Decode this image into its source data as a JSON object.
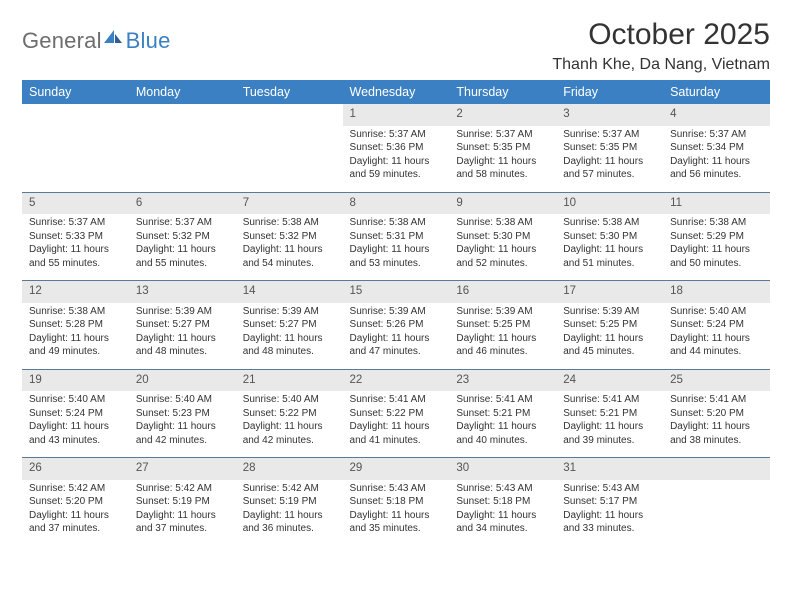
{
  "brand": {
    "part1": "General",
    "part2": "Blue"
  },
  "title": "October 2025",
  "location": "Thanh Khe, Da Nang, Vietnam",
  "colors": {
    "accent": "#3b80c2",
    "dayRowBg": "#e9e9e9",
    "ruleColor": "#5a7a9a",
    "logoGray": "#6d6d6d",
    "text": "#333333"
  },
  "dayHeaders": [
    "Sunday",
    "Monday",
    "Tuesday",
    "Wednesday",
    "Thursday",
    "Friday",
    "Saturday"
  ],
  "weeks": [
    [
      null,
      null,
      null,
      {
        "n": "1",
        "sr": "Sunrise: 5:37 AM",
        "ss": "Sunset: 5:36 PM",
        "dl": "Daylight: 11 hours and 59 minutes."
      },
      {
        "n": "2",
        "sr": "Sunrise: 5:37 AM",
        "ss": "Sunset: 5:35 PM",
        "dl": "Daylight: 11 hours and 58 minutes."
      },
      {
        "n": "3",
        "sr": "Sunrise: 5:37 AM",
        "ss": "Sunset: 5:35 PM",
        "dl": "Daylight: 11 hours and 57 minutes."
      },
      {
        "n": "4",
        "sr": "Sunrise: 5:37 AM",
        "ss": "Sunset: 5:34 PM",
        "dl": "Daylight: 11 hours and 56 minutes."
      }
    ],
    [
      {
        "n": "5",
        "sr": "Sunrise: 5:37 AM",
        "ss": "Sunset: 5:33 PM",
        "dl": "Daylight: 11 hours and 55 minutes."
      },
      {
        "n": "6",
        "sr": "Sunrise: 5:37 AM",
        "ss": "Sunset: 5:32 PM",
        "dl": "Daylight: 11 hours and 55 minutes."
      },
      {
        "n": "7",
        "sr": "Sunrise: 5:38 AM",
        "ss": "Sunset: 5:32 PM",
        "dl": "Daylight: 11 hours and 54 minutes."
      },
      {
        "n": "8",
        "sr": "Sunrise: 5:38 AM",
        "ss": "Sunset: 5:31 PM",
        "dl": "Daylight: 11 hours and 53 minutes."
      },
      {
        "n": "9",
        "sr": "Sunrise: 5:38 AM",
        "ss": "Sunset: 5:30 PM",
        "dl": "Daylight: 11 hours and 52 minutes."
      },
      {
        "n": "10",
        "sr": "Sunrise: 5:38 AM",
        "ss": "Sunset: 5:30 PM",
        "dl": "Daylight: 11 hours and 51 minutes."
      },
      {
        "n": "11",
        "sr": "Sunrise: 5:38 AM",
        "ss": "Sunset: 5:29 PM",
        "dl": "Daylight: 11 hours and 50 minutes."
      }
    ],
    [
      {
        "n": "12",
        "sr": "Sunrise: 5:38 AM",
        "ss": "Sunset: 5:28 PM",
        "dl": "Daylight: 11 hours and 49 minutes."
      },
      {
        "n": "13",
        "sr": "Sunrise: 5:39 AM",
        "ss": "Sunset: 5:27 PM",
        "dl": "Daylight: 11 hours and 48 minutes."
      },
      {
        "n": "14",
        "sr": "Sunrise: 5:39 AM",
        "ss": "Sunset: 5:27 PM",
        "dl": "Daylight: 11 hours and 48 minutes."
      },
      {
        "n": "15",
        "sr": "Sunrise: 5:39 AM",
        "ss": "Sunset: 5:26 PM",
        "dl": "Daylight: 11 hours and 47 minutes."
      },
      {
        "n": "16",
        "sr": "Sunrise: 5:39 AM",
        "ss": "Sunset: 5:25 PM",
        "dl": "Daylight: 11 hours and 46 minutes."
      },
      {
        "n": "17",
        "sr": "Sunrise: 5:39 AM",
        "ss": "Sunset: 5:25 PM",
        "dl": "Daylight: 11 hours and 45 minutes."
      },
      {
        "n": "18",
        "sr": "Sunrise: 5:40 AM",
        "ss": "Sunset: 5:24 PM",
        "dl": "Daylight: 11 hours and 44 minutes."
      }
    ],
    [
      {
        "n": "19",
        "sr": "Sunrise: 5:40 AM",
        "ss": "Sunset: 5:24 PM",
        "dl": "Daylight: 11 hours and 43 minutes."
      },
      {
        "n": "20",
        "sr": "Sunrise: 5:40 AM",
        "ss": "Sunset: 5:23 PM",
        "dl": "Daylight: 11 hours and 42 minutes."
      },
      {
        "n": "21",
        "sr": "Sunrise: 5:40 AM",
        "ss": "Sunset: 5:22 PM",
        "dl": "Daylight: 11 hours and 42 minutes."
      },
      {
        "n": "22",
        "sr": "Sunrise: 5:41 AM",
        "ss": "Sunset: 5:22 PM",
        "dl": "Daylight: 11 hours and 41 minutes."
      },
      {
        "n": "23",
        "sr": "Sunrise: 5:41 AM",
        "ss": "Sunset: 5:21 PM",
        "dl": "Daylight: 11 hours and 40 minutes."
      },
      {
        "n": "24",
        "sr": "Sunrise: 5:41 AM",
        "ss": "Sunset: 5:21 PM",
        "dl": "Daylight: 11 hours and 39 minutes."
      },
      {
        "n": "25",
        "sr": "Sunrise: 5:41 AM",
        "ss": "Sunset: 5:20 PM",
        "dl": "Daylight: 11 hours and 38 minutes."
      }
    ],
    [
      {
        "n": "26",
        "sr": "Sunrise: 5:42 AM",
        "ss": "Sunset: 5:20 PM",
        "dl": "Daylight: 11 hours and 37 minutes."
      },
      {
        "n": "27",
        "sr": "Sunrise: 5:42 AM",
        "ss": "Sunset: 5:19 PM",
        "dl": "Daylight: 11 hours and 37 minutes."
      },
      {
        "n": "28",
        "sr": "Sunrise: 5:42 AM",
        "ss": "Sunset: 5:19 PM",
        "dl": "Daylight: 11 hours and 36 minutes."
      },
      {
        "n": "29",
        "sr": "Sunrise: 5:43 AM",
        "ss": "Sunset: 5:18 PM",
        "dl": "Daylight: 11 hours and 35 minutes."
      },
      {
        "n": "30",
        "sr": "Sunrise: 5:43 AM",
        "ss": "Sunset: 5:18 PM",
        "dl": "Daylight: 11 hours and 34 minutes."
      },
      {
        "n": "31",
        "sr": "Sunrise: 5:43 AM",
        "ss": "Sunset: 5:17 PM",
        "dl": "Daylight: 11 hours and 33 minutes."
      },
      null
    ]
  ]
}
